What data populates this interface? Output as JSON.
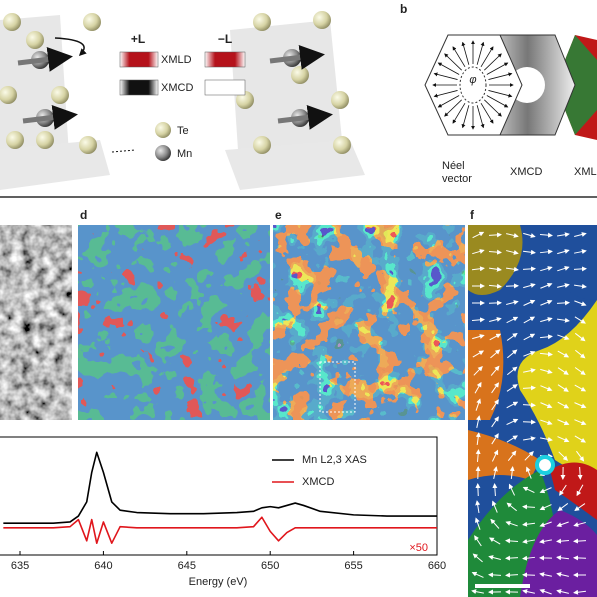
{
  "panel_labels": {
    "b": "b",
    "d": "d",
    "e": "e",
    "f": "f"
  },
  "panel_a": {
    "plus_l": "+L",
    "minus_l": "−L",
    "xmld": "XMLD",
    "xmcd": "XMCD",
    "te": "Te",
    "mn": "Mn"
  },
  "panel_b": {
    "phi": "φ",
    "neel_line1": "Néel",
    "neel_line2": "vector",
    "xmcd": "XMCD",
    "xmld": "XML"
  },
  "chart_data": {
    "type": "line",
    "xlabel": "Energy (eV)",
    "annotation": "×50",
    "x": [
      634,
      636,
      637,
      638,
      638.5,
      639,
      639.3,
      639.6,
      640,
      640.5,
      641,
      642,
      644,
      646,
      648,
      649,
      649.5,
      650,
      650.5,
      651,
      651.5,
      652,
      653,
      655,
      657,
      660
    ],
    "series": [
      {
        "name": "Mn L2,3 XAS",
        "color": "#000000",
        "values": [
          0.27,
          0.27,
          0.27,
          0.28,
          0.33,
          0.45,
          0.7,
          0.87,
          0.7,
          0.45,
          0.38,
          0.36,
          0.35,
          0.35,
          0.36,
          0.37,
          0.4,
          0.41,
          0.4,
          0.42,
          0.44,
          0.42,
          0.37,
          0.34,
          0.33,
          0.33
        ]
      },
      {
        "name": "XMCD",
        "color": "#e0161c",
        "values": [
          0.23,
          0.23,
          0.23,
          0.24,
          0.3,
          0.12,
          0.3,
          0.1,
          0.28,
          0.1,
          0.24,
          0.23,
          0.23,
          0.23,
          0.23,
          0.24,
          0.32,
          0.2,
          0.12,
          0.19,
          0.23,
          0.23,
          0.23,
          0.23,
          0.23,
          0.23
        ]
      }
    ],
    "xlim": [
      633.8,
      660
    ],
    "xticks": [
      635,
      640,
      645,
      650,
      655,
      660
    ],
    "ylim": [
      0,
      1
    ]
  }
}
